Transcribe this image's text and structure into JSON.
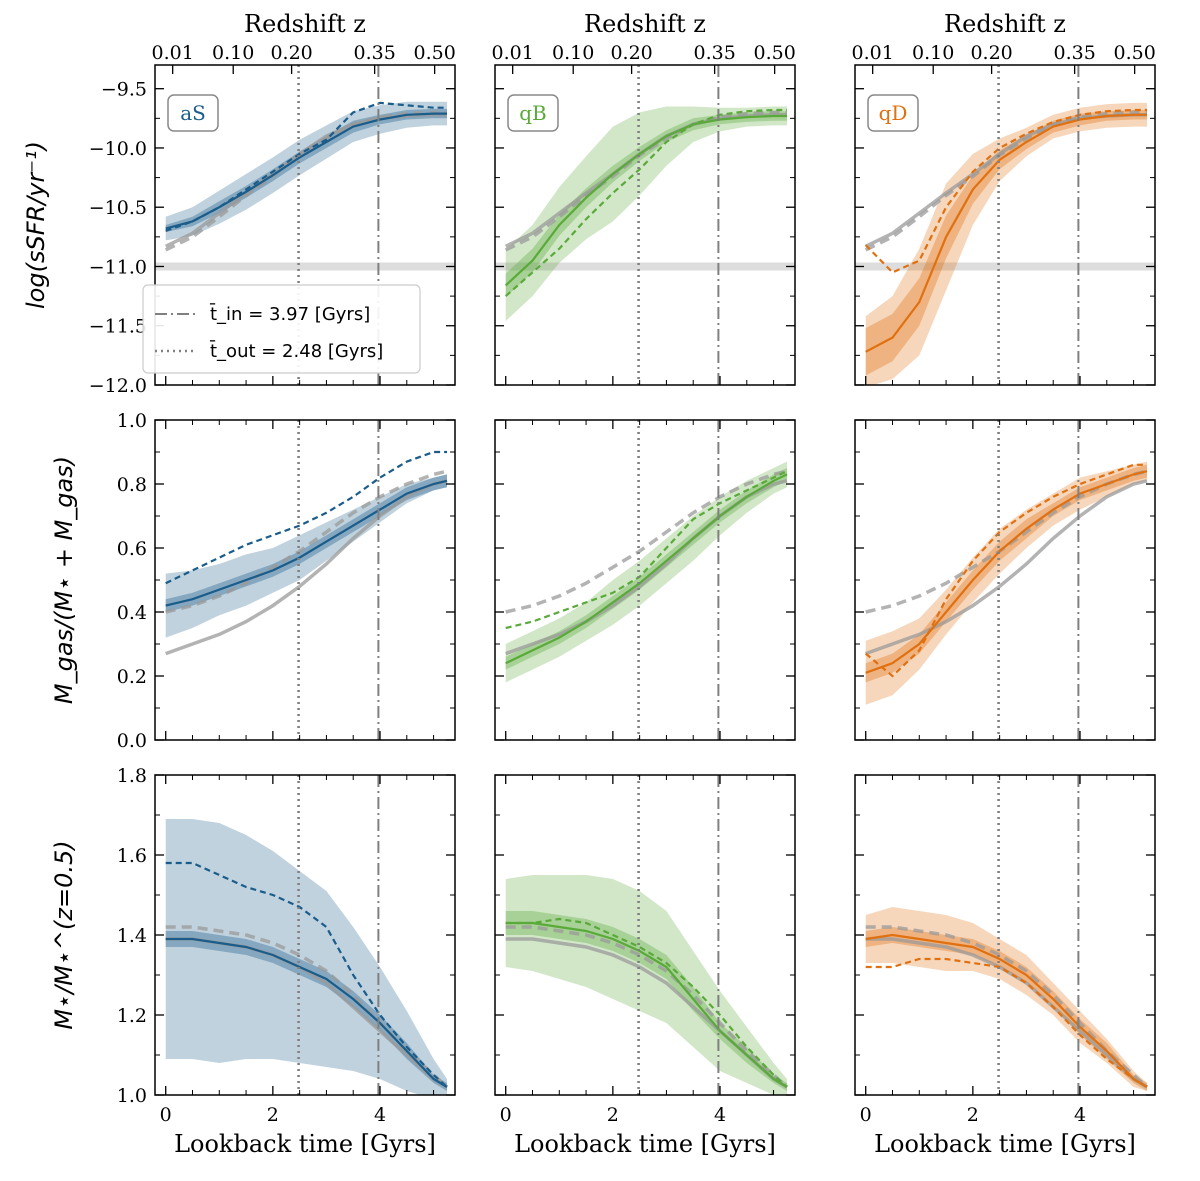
{
  "colors": {
    "aS": "#1a5c8a",
    "qB": "#5aaa3a",
    "qD": "#e07010",
    "gray": "#9a9a9a",
    "line": "#808080"
  },
  "chart_data": {
    "type": "line",
    "title": "",
    "xlabel": "Lookback time [Gyrs]",
    "top_xlabel": "Redshift z",
    "xlim": [
      -0.2,
      5.4
    ],
    "x_ticks": [
      0,
      2,
      4
    ],
    "z_ticks": [
      {
        "label": "0.01",
        "t": 0.13
      },
      {
        "label": "0.10",
        "t": 1.26
      },
      {
        "label": "0.20",
        "t": 2.35
      },
      {
        "label": "0.35",
        "t": 3.9
      },
      {
        "label": "0.50",
        "t": 5.02
      }
    ],
    "reference_lines": {
      "t_in": 3.97,
      "t_out": 2.48,
      "ssfr_threshold": -11.0
    },
    "legend": [
      {
        "label": "t̄_in = 3.97 [Gyrs]",
        "style": "dashdot"
      },
      {
        "label": "t̄_out = 2.48 [Gyrs]",
        "style": "dotted"
      }
    ],
    "columns": [
      "aS",
      "qB",
      "qD"
    ],
    "rows": [
      {
        "key": "ssfr",
        "ylabel": "log(sSFR/yr⁻¹)",
        "ylim": [
          -12.0,
          -9.3
        ],
        "ticks": [
          -12.0,
          -11.5,
          -11.0,
          -10.5,
          -10.0,
          -9.5
        ],
        "tick_labels": [
          "−12.0",
          "−11.5",
          "−11.0",
          "−10.5",
          "−10.0",
          "−9.5"
        ]
      },
      {
        "key": "gas",
        "ylabel": "M_gas/(M⋆ + M_gas)",
        "ylim": [
          0.0,
          1.0
        ],
        "ticks": [
          0.0,
          0.2,
          0.4,
          0.6,
          0.8,
          1.0
        ],
        "tick_labels": [
          "0.0",
          "0.2",
          "0.4",
          "0.6",
          "0.8",
          "1.0"
        ]
      },
      {
        "key": "mass",
        "ylabel": "M⋆/M⋆^(z=0.5)",
        "ylim": [
          1.0,
          1.8
        ],
        "ticks": [
          1.0,
          1.2,
          1.4,
          1.6,
          1.8
        ],
        "tick_labels": [
          "1.0",
          "1.2",
          "1.4",
          "1.6",
          "1.8"
        ]
      }
    ],
    "x": [
      0,
      0.5,
      1.0,
      1.5,
      2.0,
      2.5,
      3.0,
      3.5,
      4.0,
      4.5,
      5.0,
      5.25
    ],
    "gray_reference": {
      "ssfr": {
        "solid": [
          -10.83,
          -10.72,
          -10.55,
          -10.38,
          -10.22,
          -10.05,
          -9.9,
          -9.8,
          -9.75,
          -9.73,
          -9.72,
          -9.72
        ],
        "dashed": [
          -10.86,
          -10.75,
          -10.58,
          -10.4,
          -10.24,
          -10.06,
          -9.92,
          -9.8,
          -9.74,
          -9.71,
          -9.7,
          -9.7
        ]
      },
      "gas": {
        "solid": [
          0.27,
          0.3,
          0.33,
          0.37,
          0.42,
          0.48,
          0.55,
          0.63,
          0.7,
          0.76,
          0.8,
          0.81
        ],
        "dashed": [
          0.4,
          0.42,
          0.45,
          0.49,
          0.54,
          0.59,
          0.65,
          0.71,
          0.76,
          0.8,
          0.83,
          0.84
        ]
      },
      "mass": {
        "solid": [
          1.39,
          1.39,
          1.38,
          1.37,
          1.35,
          1.32,
          1.28,
          1.22,
          1.16,
          1.1,
          1.04,
          1.02
        ],
        "dashed": [
          1.42,
          1.42,
          1.41,
          1.4,
          1.38,
          1.35,
          1.31,
          1.25,
          1.18,
          1.11,
          1.05,
          1.02
        ]
      }
    },
    "series": {
      "aS": {
        "ssfr": {
          "median": [
            -10.68,
            -10.62,
            -10.5,
            -10.37,
            -10.23,
            -10.08,
            -9.95,
            -9.82,
            -9.76,
            -9.72,
            -9.71,
            -9.71
          ],
          "band1": [
            0.03,
            0.04,
            0.05,
            0.05,
            0.05,
            0.05,
            0.05,
            0.05,
            0.04,
            0.04,
            0.04,
            0.04
          ],
          "band2": [
            0.1,
            0.12,
            0.14,
            0.15,
            0.15,
            0.15,
            0.14,
            0.13,
            0.12,
            0.11,
            0.1,
            0.1
          ],
          "dashed": [
            -10.7,
            -10.62,
            -10.5,
            -10.35,
            -10.2,
            -10.05,
            -9.93,
            -9.7,
            -9.62,
            -9.64,
            -9.66,
            -9.66
          ]
        },
        "gas": {
          "median": [
            0.42,
            0.44,
            0.47,
            0.5,
            0.53,
            0.57,
            0.62,
            0.67,
            0.72,
            0.77,
            0.8,
            0.81
          ],
          "band1": [
            0.02,
            0.02,
            0.02,
            0.02,
            0.02,
            0.02,
            0.02,
            0.02,
            0.02,
            0.02,
            0.02,
            0.02
          ],
          "band2": [
            0.1,
            0.09,
            0.08,
            0.08,
            0.07,
            0.07,
            0.06,
            0.05,
            0.04,
            0.03,
            0.02,
            0.02
          ],
          "dashed": [
            0.49,
            0.53,
            0.57,
            0.61,
            0.64,
            0.67,
            0.71,
            0.76,
            0.82,
            0.87,
            0.9,
            0.9
          ]
        },
        "mass": {
          "median": [
            1.39,
            1.39,
            1.38,
            1.37,
            1.35,
            1.32,
            1.29,
            1.24,
            1.18,
            1.11,
            1.04,
            1.02
          ],
          "band1": [
            0.02,
            0.02,
            0.02,
            0.02,
            0.02,
            0.02,
            0.02,
            0.02,
            0.02,
            0.02,
            0.01,
            0.01
          ],
          "band2": [
            0.3,
            0.3,
            0.3,
            0.28,
            0.26,
            0.24,
            0.22,
            0.18,
            0.14,
            0.1,
            0.05,
            0.02
          ],
          "dashed": [
            1.58,
            1.58,
            1.55,
            1.52,
            1.5,
            1.47,
            1.42,
            1.3,
            1.2,
            1.12,
            1.05,
            1.02
          ]
        }
      },
      "qB": {
        "ssfr": {
          "median": [
            -11.16,
            -10.95,
            -10.65,
            -10.42,
            -10.22,
            -10.05,
            -9.9,
            -9.8,
            -9.76,
            -9.74,
            -9.73,
            -9.73
          ],
          "band1": [
            0.1,
            0.1,
            0.09,
            0.08,
            0.07,
            0.06,
            0.05,
            0.05,
            0.04,
            0.04,
            0.04,
            0.04
          ],
          "band2": [
            0.3,
            0.3,
            0.32,
            0.35,
            0.4,
            0.35,
            0.25,
            0.15,
            0.1,
            0.08,
            0.08,
            0.08
          ],
          "dashed": [
            -11.25,
            -11.05,
            -10.85,
            -10.6,
            -10.38,
            -10.18,
            -9.95,
            -9.8,
            -9.72,
            -9.69,
            -9.68,
            -9.68
          ]
        },
        "gas": {
          "median": [
            0.24,
            0.28,
            0.32,
            0.37,
            0.43,
            0.49,
            0.56,
            0.63,
            0.7,
            0.76,
            0.81,
            0.83
          ],
          "band1": [
            0.02,
            0.02,
            0.02,
            0.02,
            0.02,
            0.02,
            0.02,
            0.02,
            0.02,
            0.02,
            0.02,
            0.02
          ],
          "band2": [
            0.06,
            0.06,
            0.06,
            0.06,
            0.07,
            0.07,
            0.07,
            0.07,
            0.06,
            0.05,
            0.04,
            0.04
          ],
          "dashed": [
            0.35,
            0.37,
            0.4,
            0.43,
            0.46,
            0.51,
            0.6,
            0.69,
            0.74,
            0.78,
            0.82,
            0.84
          ]
        },
        "mass": {
          "median": [
            1.43,
            1.43,
            1.42,
            1.41,
            1.39,
            1.36,
            1.32,
            1.24,
            1.16,
            1.1,
            1.04,
            1.02
          ],
          "band1": [
            0.03,
            0.03,
            0.03,
            0.03,
            0.03,
            0.03,
            0.03,
            0.03,
            0.02,
            0.02,
            0.01,
            0.01
          ],
          "band2": [
            0.11,
            0.12,
            0.13,
            0.14,
            0.15,
            0.15,
            0.14,
            0.12,
            0.1,
            0.07,
            0.04,
            0.02
          ],
          "dashed": [
            1.43,
            1.43,
            1.44,
            1.43,
            1.4,
            1.37,
            1.33,
            1.27,
            1.2,
            1.12,
            1.05,
            1.02
          ]
        }
      },
      "qD": {
        "ssfr": {
          "median": [
            -11.72,
            -11.6,
            -11.3,
            -10.75,
            -10.35,
            -10.1,
            -9.95,
            -9.82,
            -9.76,
            -9.73,
            -9.72,
            -9.72
          ],
          "band1": [
            0.2,
            0.2,
            0.2,
            0.18,
            0.12,
            0.08,
            0.06,
            0.05,
            0.05,
            0.04,
            0.04,
            0.04
          ],
          "band2": [
            0.3,
            0.35,
            0.45,
            0.45,
            0.3,
            0.18,
            0.12,
            0.1,
            0.1,
            0.1,
            0.1,
            0.1
          ],
          "dashed": [
            -10.82,
            -11.05,
            -10.95,
            -10.5,
            -10.2,
            -10.0,
            -9.88,
            -9.78,
            -9.72,
            -9.69,
            -9.68,
            -9.68
          ]
        },
        "gas": {
          "median": [
            0.21,
            0.24,
            0.3,
            0.4,
            0.5,
            0.59,
            0.66,
            0.72,
            0.77,
            0.8,
            0.83,
            0.84
          ],
          "band1": [
            0.03,
            0.03,
            0.03,
            0.03,
            0.03,
            0.03,
            0.03,
            0.02,
            0.02,
            0.02,
            0.02,
            0.02
          ],
          "band2": [
            0.1,
            0.1,
            0.08,
            0.07,
            0.07,
            0.07,
            0.06,
            0.05,
            0.05,
            0.04,
            0.03,
            0.03
          ],
          "dashed": [
            0.27,
            0.2,
            0.28,
            0.44,
            0.56,
            0.65,
            0.71,
            0.76,
            0.8,
            0.83,
            0.86,
            0.86
          ]
        },
        "mass": {
          "median": [
            1.39,
            1.4,
            1.39,
            1.38,
            1.37,
            1.34,
            1.3,
            1.24,
            1.17,
            1.11,
            1.04,
            1.02
          ],
          "band1": [
            0.02,
            0.02,
            0.02,
            0.02,
            0.02,
            0.02,
            0.02,
            0.02,
            0.02,
            0.02,
            0.01,
            0.01
          ],
          "band2": [
            0.06,
            0.07,
            0.07,
            0.07,
            0.06,
            0.05,
            0.05,
            0.04,
            0.04,
            0.03,
            0.02,
            0.01
          ],
          "dashed": [
            1.32,
            1.32,
            1.34,
            1.34,
            1.33,
            1.32,
            1.28,
            1.22,
            1.15,
            1.09,
            1.04,
            1.02
          ]
        }
      }
    }
  }
}
